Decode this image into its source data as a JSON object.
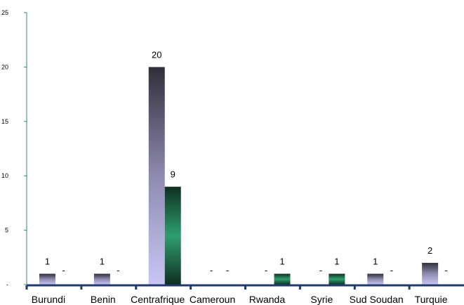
{
  "chart_data": {
    "type": "bar",
    "categories": [
      "Burundi",
      "Benin",
      "Centrafrique",
      "Cameroun",
      "Rwanda",
      "Syrie",
      "Sud Soudan",
      "Turquie"
    ],
    "series": [
      {
        "values": [
          1,
          1,
          20,
          0,
          0,
          0,
          1,
          2
        ],
        "data_labels": [
          "1",
          "1",
          "20",
          "-",
          "-",
          "-",
          "1",
          "2"
        ],
        "gradient": [
          "#c9c6f5",
          "#8e8bb0",
          "#2f2f3a"
        ]
      },
      {
        "values": [
          0,
          0,
          9,
          0,
          1,
          1,
          0,
          0
        ],
        "data_labels": [
          "-",
          "-",
          "9",
          "-",
          "1",
          "1",
          "-",
          "-"
        ],
        "gradient": [
          "#0f2f20",
          "#2e9e6e",
          "#0f2f20"
        ]
      }
    ],
    "y_ticks": [
      "-",
      "5",
      "10",
      "15",
      "20",
      "25"
    ],
    "ylim": [
      0,
      25
    ],
    "grid": false,
    "colors": {
      "axis": "#1f3a6b",
      "y_axis": "#2e8a7a"
    }
  }
}
